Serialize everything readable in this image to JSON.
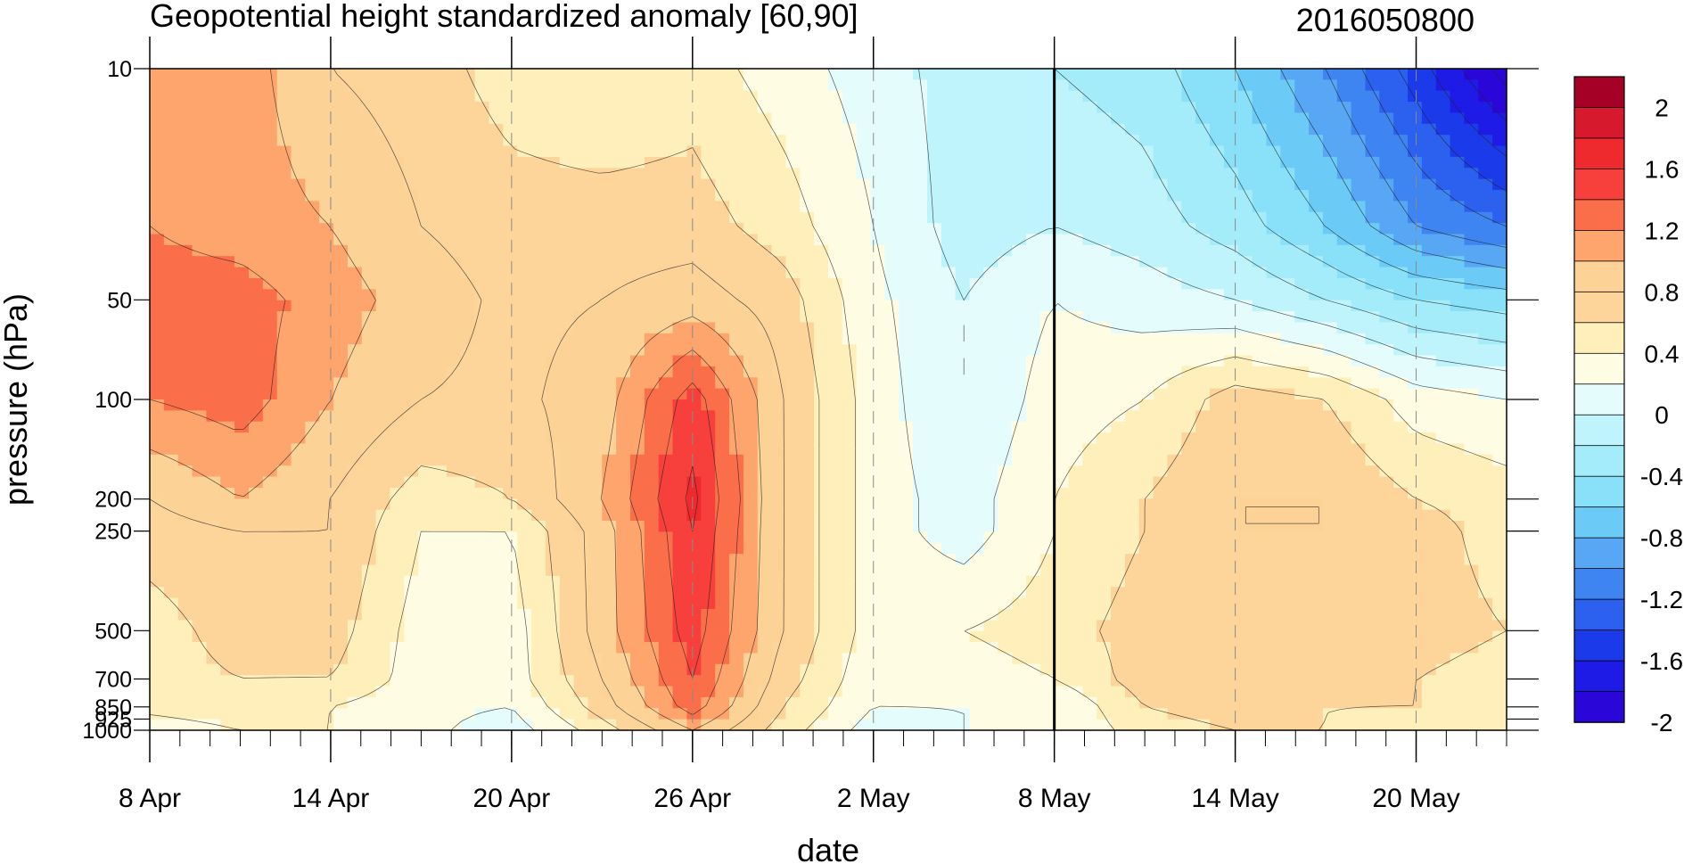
{
  "title_left": "Geopotential height standardized anomaly [60,90]",
  "title_right": "2016050800",
  "chart_data": {
    "type": "heatmap",
    "subtype": "filled-contour (time-pressure cross section)",
    "title": "Geopotential height standardized anomaly [60,90]",
    "date_stamp": "2016050800",
    "xlabel": "date",
    "ylabel": "pressure (hPa)",
    "x_range": [
      "2016-04-08",
      "2016-05-23"
    ],
    "y_range_hpa": [
      1000,
      10
    ],
    "y_scale": "log",
    "x_ticks": [
      {
        "date": "2016-04-08",
        "label": "8 Apr"
      },
      {
        "date": "2016-04-14",
        "label": "14 Apr"
      },
      {
        "date": "2016-04-20",
        "label": "20 Apr"
      },
      {
        "date": "2016-04-26",
        "label": "26 Apr"
      },
      {
        "date": "2016-05-02",
        "label": "2 May"
      },
      {
        "date": "2016-05-08",
        "label": "8 May"
      },
      {
        "date": "2016-05-14",
        "label": "14 May"
      },
      {
        "date": "2016-05-20",
        "label": "20 May"
      }
    ],
    "y_ticks": [
      {
        "value": 10,
        "label": "10"
      },
      {
        "value": 50,
        "label": "50"
      },
      {
        "value": 100,
        "label": "100"
      },
      {
        "value": 200,
        "label": "200"
      },
      {
        "value": 250,
        "label": "250"
      },
      {
        "value": 500,
        "label": "500"
      },
      {
        "value": 700,
        "label": "700"
      },
      {
        "value": 850,
        "label": "850"
      },
      {
        "value": 925,
        "label": "925"
      },
      {
        "value": 1000,
        "label": "1000"
      }
    ],
    "vertical_marker_date": "2016-05-08",
    "gridlines": "dashed vertical at labeled dates",
    "contour_levels": [
      -2.2,
      -2,
      -1.8,
      -1.6,
      -1.4,
      -1.2,
      -1,
      -0.8,
      -0.6,
      -0.4,
      -0.2,
      0,
      0.2,
      0.4,
      0.6,
      0.8,
      1,
      1.2,
      1.4,
      1.6,
      1.8,
      2,
      2.2
    ],
    "colorbar": {
      "labels": [
        "2",
        "1.6",
        "1.2",
        "0.8",
        "0.4",
        "0",
        "-0.4",
        "-0.8",
        "-1.2",
        "-1.6",
        "-2"
      ],
      "colors_top_to_bottom": [
        "#a50026",
        "#d7192d",
        "#ee2a2f",
        "#f73f3b",
        "#fb6e4a",
        "#fda56c",
        "#fcd297",
        "#fdd49a",
        "#fff0bb",
        "#fefde4",
        "#e5fcfd",
        "#bff4fc",
        "#a5ecfb",
        "#88e0f9",
        "#6ccbf6",
        "#58a7f5",
        "#3e85f2",
        "#2c60ee",
        "#1b3bea",
        "#1f1be6",
        "#2a07d8"
      ]
    },
    "series": [
      {
        "date": "2016-04-08",
        "z_by_level": {
          "10": 1.0,
          "30": 1.0,
          "50": 1.1,
          "100": 1.0,
          "200": 0.6,
          "250": 0.5,
          "500": 0.3,
          "700": 0.3,
          "850": 0.25,
          "1000": 0.1
        }
      },
      {
        "date": "2016-04-11",
        "z_by_level": {
          "10": 0.9,
          "30": 0.9,
          "50": 1.1,
          "100": 1.1,
          "200": 0.8,
          "250": 0.6,
          "500": 0.5,
          "700": 0.4,
          "850": 0.3,
          "1000": 0.2
        }
      },
      {
        "date": "2016-04-14",
        "z_by_level": {
          "10": 0.6,
          "30": 0.8,
          "50": 0.9,
          "100": 0.8,
          "200": 0.6,
          "250": 0.6,
          "500": 0.5,
          "700": 0.4,
          "850": 0.2,
          "1000": 0.2
        }
      },
      {
        "date": "2016-04-17",
        "z_by_level": {
          "10": 0.5,
          "30": 0.6,
          "50": 0.7,
          "100": 0.6,
          "200": 0.3,
          "250": 0.2,
          "500": 0.1,
          "700": 0.1,
          "850": 0.05,
          "1000": 0.05
        }
      },
      {
        "date": "2016-04-20",
        "z_by_level": {
          "10": 0.3,
          "30": 0.5,
          "50": 0.55,
          "100": 0.55,
          "200": 0.4,
          "250": 0.2,
          "500": 0.1,
          "700": 0.1,
          "850": 0.0,
          "1000": -0.1
        }
      },
      {
        "date": "2016-04-23",
        "z_by_level": {
          "10": 0.2,
          "30": 0.5,
          "50": 0.6,
          "100": 0.7,
          "200": 0.8,
          "250": 0.7,
          "500": 0.7,
          "700": 0.6,
          "850": 0.5,
          "1000": 0.3
        }
      },
      {
        "date": "2016-04-26",
        "z_by_level": {
          "10": 0.3,
          "30": 0.5,
          "50": 0.7,
          "100": 1.3,
          "200": 1.45,
          "250": 1.4,
          "500": 1.3,
          "700": 1.2,
          "850": 1.1,
          "1000": 0.8
        }
      },
      {
        "date": "2016-04-29",
        "z_by_level": {
          "10": 0.1,
          "30": 0.3,
          "50": 0.5,
          "100": 0.6,
          "200": 0.6,
          "250": 0.6,
          "500": 0.6,
          "700": 0.5,
          "850": 0.4,
          "1000": 0.3
        }
      },
      {
        "date": "2016-05-02",
        "z_by_level": {
          "10": -0.1,
          "30": 0.0,
          "50": 0.05,
          "100": 0.1,
          "200": 0.1,
          "250": 0.1,
          "500": 0.1,
          "700": 0.05,
          "850": 0.0,
          "1000": -0.1
        }
      },
      {
        "date": "2016-05-05",
        "z_by_level": {
          "10": -0.3,
          "30": -0.3,
          "50": -0.2,
          "100": -0.2,
          "200": -0.1,
          "250": -0.1,
          "500": 0.2,
          "700": 0.1,
          "850": 0.0,
          "1000": 0.0
        }
      },
      {
        "date": "2016-05-08",
        "z_by_level": {
          "10": -0.4,
          "30": -0.2,
          "50": 0.0,
          "100": 0.1,
          "200": 0.2,
          "250": 0.2,
          "500": 0.3,
          "700": 0.2,
          "850": 0.0,
          "1000": 0.0
        }
      },
      {
        "date": "2016-05-11",
        "z_by_level": {
          "10": -0.5,
          "30": -0.3,
          "50": -0.1,
          "100": 0.2,
          "200": 0.4,
          "250": 0.4,
          "500": 0.5,
          "700": 0.5,
          "850": 0.4,
          "1000": 0.3
        }
      },
      {
        "date": "2016-05-14",
        "z_by_level": {
          "10": -0.8,
          "30": -0.5,
          "50": -0.2,
          "100": 0.5,
          "200": 0.6,
          "250": 0.6,
          "500": 0.6,
          "700": 0.6,
          "850": 0.5,
          "1000": 0.4
        }
      },
      {
        "date": "2016-05-17",
        "z_by_level": {
          "10": -1.2,
          "30": -0.8,
          "50": -0.4,
          "100": 0.4,
          "200": 0.6,
          "250": 0.6,
          "500": 0.5,
          "700": 0.5,
          "850": 0.4,
          "1000": 0.4
        }
      },
      {
        "date": "2016-05-20",
        "z_by_level": {
          "10": -1.7,
          "30": -1.2,
          "50": -0.6,
          "100": 0.1,
          "200": 0.4,
          "250": 0.5,
          "500": 0.5,
          "700": 0.4,
          "850": 0.4,
          "1000": 0.3
        }
      },
      {
        "date": "2016-05-23",
        "z_by_level": {
          "10": -2.3,
          "30": -1.4,
          "50": -0.7,
          "100": 0.0,
          "200": 0.3,
          "250": 0.3,
          "500": 0.4,
          "700": 0.3,
          "850": 0.3,
          "1000": 0.3
        }
      }
    ]
  }
}
